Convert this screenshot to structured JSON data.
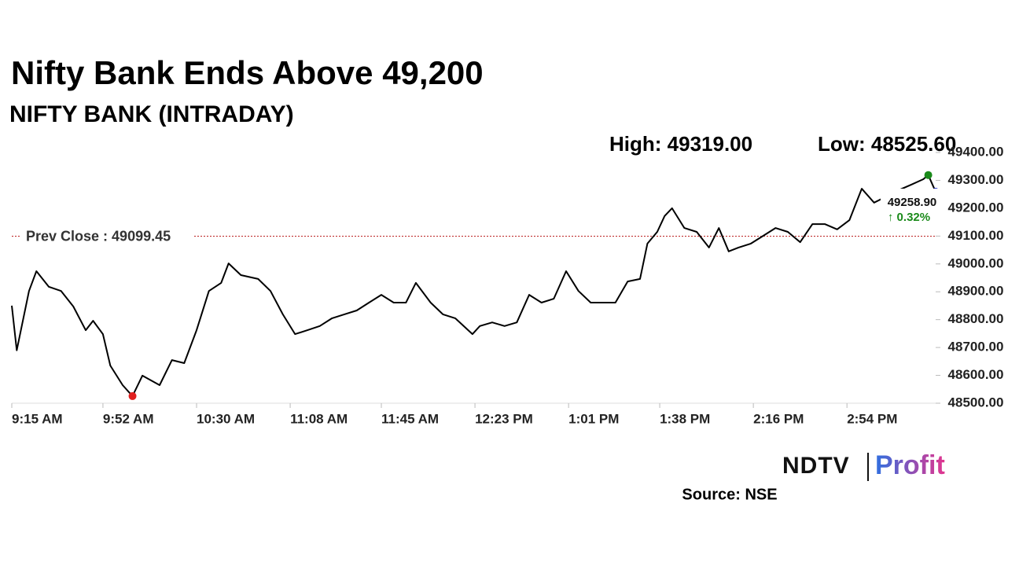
{
  "chart_data": {
    "type": "line",
    "title": "Nifty Bank Ends Above 49,200",
    "subtitle": "NIFTY BANK (INTRADAY)",
    "high_label": "High: 49319.00",
    "low_label": "Low: 48525.60",
    "prev_close_label": "Prev Close : 49099.45",
    "prev_close": 49099.45,
    "last_label": "49258.90",
    "change_label": "↑ 0.32%",
    "color": "#000000",
    "x": [
      "9:15 AM",
      "9:17 AM",
      "9:22 AM",
      "9:25 AM",
      "9:30 AM",
      "9:35 AM",
      "9:40 AM",
      "9:45 AM",
      "9:48 AM",
      "9:52 AM",
      "9:55 AM",
      "10:00 AM",
      "10:04 AM",
      "10:08 AM",
      "10:15 AM",
      "10:20 AM",
      "10:25 AM",
      "10:30 AM",
      "10:35 AM",
      "10:40 AM",
      "10:43 AM",
      "10:48 AM",
      "10:55 AM",
      "11:00 AM",
      "11:05 AM",
      "11:10 AM",
      "11:15 AM",
      "11:20 AM",
      "11:25 AM",
      "11:30 AM",
      "11:35 AM",
      "11:40 AM",
      "11:45 AM",
      "11:50 AM",
      "11:55 AM",
      "11:59 AM",
      "12:05 PM",
      "12:10 PM",
      "12:15 PM",
      "12:22 PM",
      "12:25 PM",
      "12:30 PM",
      "12:35 PM",
      "12:40 PM",
      "12:45 PM",
      "12:50 PM",
      "12:55 PM",
      "1:00 PM",
      "1:05 PM",
      "1:10 PM",
      "1:15 PM",
      "1:20 PM",
      "1:25 PM",
      "1:30 PM",
      "1:33 PM",
      "1:37 PM",
      "1:40 PM",
      "1:43 PM",
      "1:48 PM",
      "1:53 PM",
      "1:58 PM",
      "2:02 PM",
      "2:06 PM",
      "2:10 PM",
      "2:15 PM",
      "2:20 PM",
      "2:25 PM",
      "2:30 PM",
      "2:35 PM",
      "2:40 PM",
      "2:45 PM",
      "2:50 PM",
      "2:55 PM",
      "3:00 PM",
      "3:05 PM",
      "3:10 PM",
      "3:15 PM",
      "3:20 PM",
      "3:25 PM",
      "3:27 PM",
      "3:30 PM"
    ],
    "values": [
      48850,
      48690,
      48903,
      48974,
      48918,
      48903,
      48847,
      48762,
      48796,
      48748,
      48635,
      48565,
      48525.6,
      48599,
      48565,
      48655,
      48644,
      48762,
      48903,
      48932,
      49002,
      48960,
      48946,
      48903,
      48819,
      48748,
      48762,
      48777,
      48805,
      48819,
      48833,
      48861,
      48889,
      48861,
      48861,
      48932,
      48861,
      48819,
      48805,
      48748,
      48777,
      48790,
      48777,
      48790,
      48889,
      48861,
      48875,
      48974,
      48903,
      48861,
      48861,
      48861,
      48937,
      48946,
      49073,
      49115,
      49172,
      49200,
      49129,
      49115,
      49059,
      49129,
      49045,
      49059,
      49073,
      49101,
      49129,
      49115,
      49078,
      49143,
      49143,
      49124,
      49157,
      49270,
      49220,
      49242,
      49265,
      49284,
      49304,
      49319,
      49258.9
    ],
    "xlim": [
      "9:15 AM",
      "3:30 PM"
    ],
    "xticks": [
      "9:15 AM",
      "9:52 AM",
      "10:30 AM",
      "11:08 AM",
      "11:45 AM",
      "12:23 PM",
      "1:01 PM",
      "1:38 PM",
      "2:16 PM",
      "2:54 PM"
    ],
    "ylim": [
      48500,
      49400
    ],
    "yticks": [
      {
        "value": 48500,
        "label": "48500.00"
      },
      {
        "value": 48600,
        "label": "48600.00"
      },
      {
        "value": 48700,
        "label": "48700.00"
      },
      {
        "value": 48800,
        "label": "48800.00"
      },
      {
        "value": 48900,
        "label": "48900.00"
      },
      {
        "value": 49000,
        "label": "49000.00"
      },
      {
        "value": 49100,
        "label": "49100.00"
      },
      {
        "value": 49200,
        "label": "49200.00"
      },
      {
        "value": 49300,
        "label": "49300.00"
      },
      {
        "value": 49400,
        "label": "49400.00"
      }
    ],
    "grid": false
  },
  "brand": {
    "name": "NDTV",
    "product": "Profit"
  },
  "source": "Source: NSE"
}
